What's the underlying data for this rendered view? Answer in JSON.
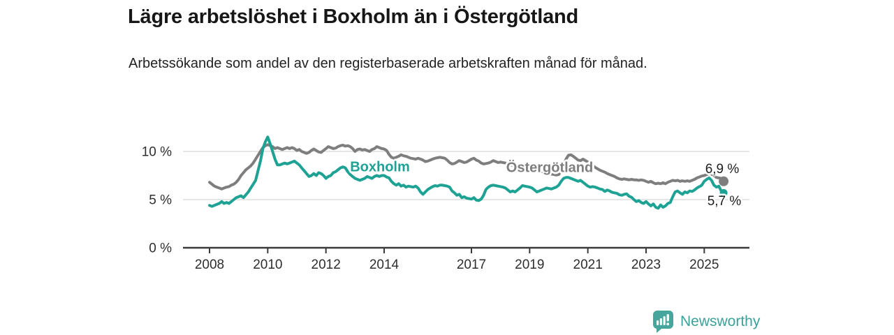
{
  "header": {
    "title": "Lägre arbetslöshet i Boxholm än i Östergötland",
    "subtitle": "Arbetssökande som andel av den registerbaserade arbetskraften månad för månad."
  },
  "colors": {
    "boxholm": "#1ea294",
    "ostergotland": "#7e7e7e",
    "axis": "#3a3a3a",
    "grid": "#dedede",
    "tick_text": "#2e2e2e",
    "logo_teal": "#46a59c"
  },
  "chart_data": {
    "type": "line",
    "title": "Lägre arbetslöshet i Boxholm än i Östergötland",
    "xlabel": "",
    "ylabel": "",
    "unit": "%",
    "grid": "horizontal",
    "legend_position": "inline-labels",
    "xlim": [
      2007.1,
      2026.5
    ],
    "ylim": [
      0,
      12
    ],
    "start_year": 2008.0,
    "points_per_year": 12,
    "x_ticks": [
      {
        "value": 2008,
        "label": "2008"
      },
      {
        "value": 2010,
        "label": "2010"
      },
      {
        "value": 2012,
        "label": "2012"
      },
      {
        "value": 2014,
        "label": "2014"
      },
      {
        "value": 2017,
        "label": "2017"
      },
      {
        "value": 2019,
        "label": "2019"
      },
      {
        "value": 2021,
        "label": "2021"
      },
      {
        "value": 2023,
        "label": "2023"
      },
      {
        "value": 2025,
        "label": "2025"
      }
    ],
    "y_ticks": [
      {
        "value": 0,
        "label": "0 %"
      },
      {
        "value": 5,
        "label": "5 %"
      },
      {
        "value": 10,
        "label": "10 %"
      }
    ],
    "series": [
      {
        "name": "Östergötland",
        "color": "#7e7e7e",
        "end_label": "6,9 %",
        "end_value": 6.9,
        "values": [
          6.8,
          6.6,
          6.4,
          6.3,
          6.2,
          6.1,
          6.2,
          6.3,
          6.35,
          6.5,
          6.6,
          6.8,
          7.1,
          7.5,
          7.8,
          8.1,
          8.3,
          8.5,
          8.8,
          9.2,
          9.6,
          10.0,
          10.4,
          10.6,
          10.7,
          10.6,
          10.5,
          10.3,
          10.4,
          10.3,
          10.2,
          10.3,
          10.4,
          10.3,
          10.4,
          10.3,
          10.1,
          10.2,
          10.0,
          9.9,
          9.8,
          9.9,
          10.1,
          10.25,
          10.1,
          9.95,
          9.9,
          10.1,
          10.3,
          10.5,
          10.4,
          10.3,
          10.35,
          10.5,
          10.6,
          10.65,
          10.55,
          10.6,
          10.5,
          10.3,
          10.0,
          10.2,
          10.25,
          10.15,
          10.2,
          10.1,
          10.0,
          10.2,
          10.3,
          10.5,
          10.4,
          10.3,
          10.25,
          10.1,
          9.7,
          9.4,
          9.3,
          9.4,
          9.5,
          9.65,
          9.55,
          9.5,
          9.4,
          9.3,
          9.25,
          9.2,
          9.3,
          9.2,
          9.1,
          8.95,
          9.0,
          9.1,
          9.2,
          9.3,
          9.35,
          9.4,
          9.35,
          9.3,
          9.1,
          8.85,
          8.7,
          8.75,
          8.9,
          9.05,
          8.95,
          8.85,
          8.9,
          9.05,
          9.2,
          9.3,
          9.1,
          9.0,
          8.8,
          8.7,
          8.75,
          8.8,
          8.9,
          9.05,
          8.95,
          8.85,
          8.9,
          8.85,
          8.8,
          8.7,
          8.6,
          8.55,
          8.5,
          8.45,
          8.4,
          8.35,
          8.3,
          8.25,
          8.2,
          8.15,
          8.1,
          8.0,
          7.95,
          7.9,
          7.85,
          7.7,
          7.6,
          7.65,
          7.6,
          7.55,
          7.6,
          8.0,
          8.6,
          9.2,
          9.6,
          9.65,
          9.5,
          9.3,
          9.1,
          9.05,
          9.2,
          9.05,
          8.9,
          8.7,
          8.55,
          8.35,
          8.2,
          8.05,
          7.95,
          7.85,
          7.7,
          7.6,
          7.5,
          7.4,
          7.25,
          7.15,
          7.1,
          7.15,
          7.1,
          7.05,
          7.1,
          7.05,
          7.05,
          7.0,
          7.05,
          7.0,
          6.9,
          6.8,
          6.9,
          6.75,
          6.65,
          6.7,
          6.65,
          6.75,
          6.65,
          6.8,
          6.9,
          7.0,
          6.95,
          7.0,
          6.9,
          6.95,
          6.9,
          6.95,
          6.9,
          7.0,
          7.1,
          7.25,
          7.35,
          7.45,
          7.5,
          7.6,
          7.7,
          7.65,
          7.5,
          7.3,
          7.25,
          7.2,
          6.9
        ]
      },
      {
        "name": "Boxholm",
        "color": "#1ea294",
        "end_label": "5,7 %",
        "end_value": 5.7,
        "values": [
          4.4,
          4.3,
          4.4,
          4.5,
          4.6,
          4.8,
          4.6,
          4.7,
          4.6,
          4.8,
          5.0,
          5.2,
          5.3,
          5.4,
          5.2,
          5.5,
          5.8,
          6.2,
          6.6,
          7.0,
          8.0,
          9.0,
          10.3,
          11.0,
          11.5,
          10.8,
          10.0,
          9.2,
          8.6,
          8.6,
          8.7,
          8.8,
          8.7,
          8.8,
          8.9,
          9.0,
          8.8,
          8.6,
          8.3,
          8.0,
          7.7,
          7.4,
          7.5,
          7.7,
          7.5,
          7.8,
          7.7,
          7.5,
          7.2,
          7.4,
          7.5,
          7.8,
          7.9,
          8.1,
          8.3,
          8.4,
          8.3,
          7.9,
          7.6,
          7.4,
          7.2,
          7.1,
          7.0,
          7.1,
          7.2,
          7.4,
          7.3,
          7.2,
          7.4,
          7.5,
          7.4,
          7.5,
          7.5,
          7.35,
          7.25,
          6.9,
          6.65,
          6.5,
          6.65,
          6.4,
          6.5,
          6.3,
          6.4,
          6.35,
          6.3,
          6.4,
          6.2,
          5.8,
          5.55,
          5.8,
          6.05,
          6.2,
          6.35,
          6.45,
          6.4,
          6.5,
          6.5,
          6.45,
          6.4,
          6.3,
          5.9,
          5.7,
          5.45,
          5.55,
          5.2,
          5.3,
          5.15,
          5.1,
          5.05,
          5.2,
          4.95,
          4.9,
          5.05,
          5.45,
          6.05,
          6.3,
          6.45,
          6.5,
          6.45,
          6.4,
          6.35,
          6.3,
          6.2,
          6.0,
          5.8,
          5.9,
          5.8,
          6.0,
          6.2,
          6.45,
          6.4,
          6.35,
          6.3,
          6.2,
          6.0,
          5.8,
          5.9,
          6.0,
          6.1,
          6.2,
          6.15,
          6.1,
          6.2,
          6.3,
          6.5,
          6.9,
          7.2,
          7.3,
          7.3,
          7.2,
          7.1,
          7.0,
          6.9,
          7.0,
          6.8,
          6.6,
          6.4,
          6.3,
          6.35,
          6.3,
          6.2,
          6.1,
          6.05,
          5.85,
          6.0,
          5.9,
          5.75,
          5.7,
          5.65,
          5.5,
          5.45,
          5.55,
          5.6,
          5.35,
          5.25,
          5.0,
          4.8,
          4.9,
          4.7,
          4.6,
          4.8,
          4.55,
          4.35,
          4.55,
          4.2,
          4.1,
          4.45,
          4.2,
          4.35,
          4.6,
          4.7,
          5.3,
          5.8,
          5.9,
          5.7,
          5.55,
          5.8,
          5.7,
          5.9,
          5.85,
          6.0,
          6.2,
          6.35,
          6.5,
          6.9,
          7.1,
          7.25,
          7.0,
          6.5,
          6.3,
          6.4,
          5.9,
          5.7
        ]
      }
    ]
  },
  "footer": {
    "brand": "Newsworthy"
  }
}
